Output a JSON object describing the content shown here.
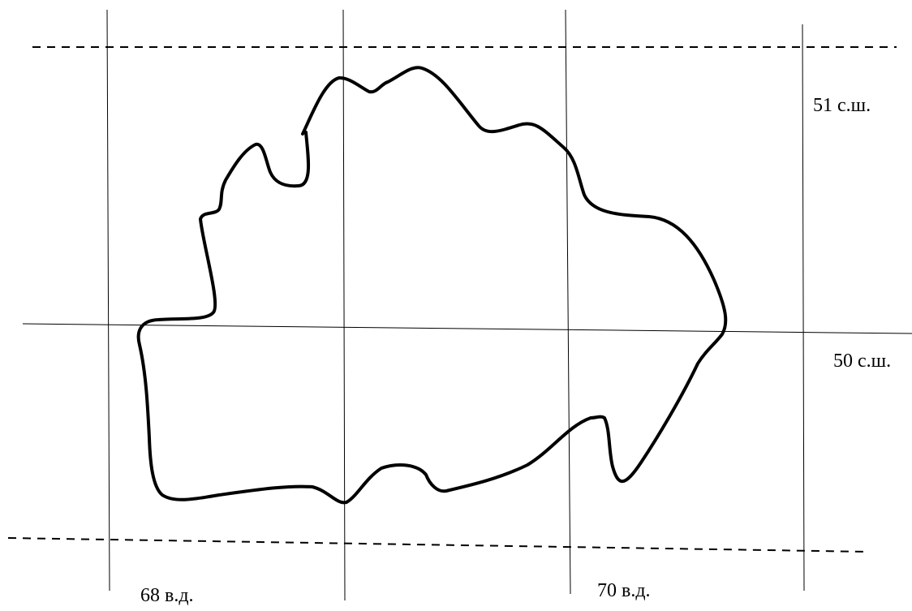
{
  "map": {
    "labels": {
      "lat_51": "51 с.ш.",
      "lat_50": "50 с.ш.",
      "lon_68": "68 в.д.",
      "lon_70": "70 в.д."
    },
    "colors": {
      "line": "#000000",
      "background": "#ffffff"
    }
  }
}
